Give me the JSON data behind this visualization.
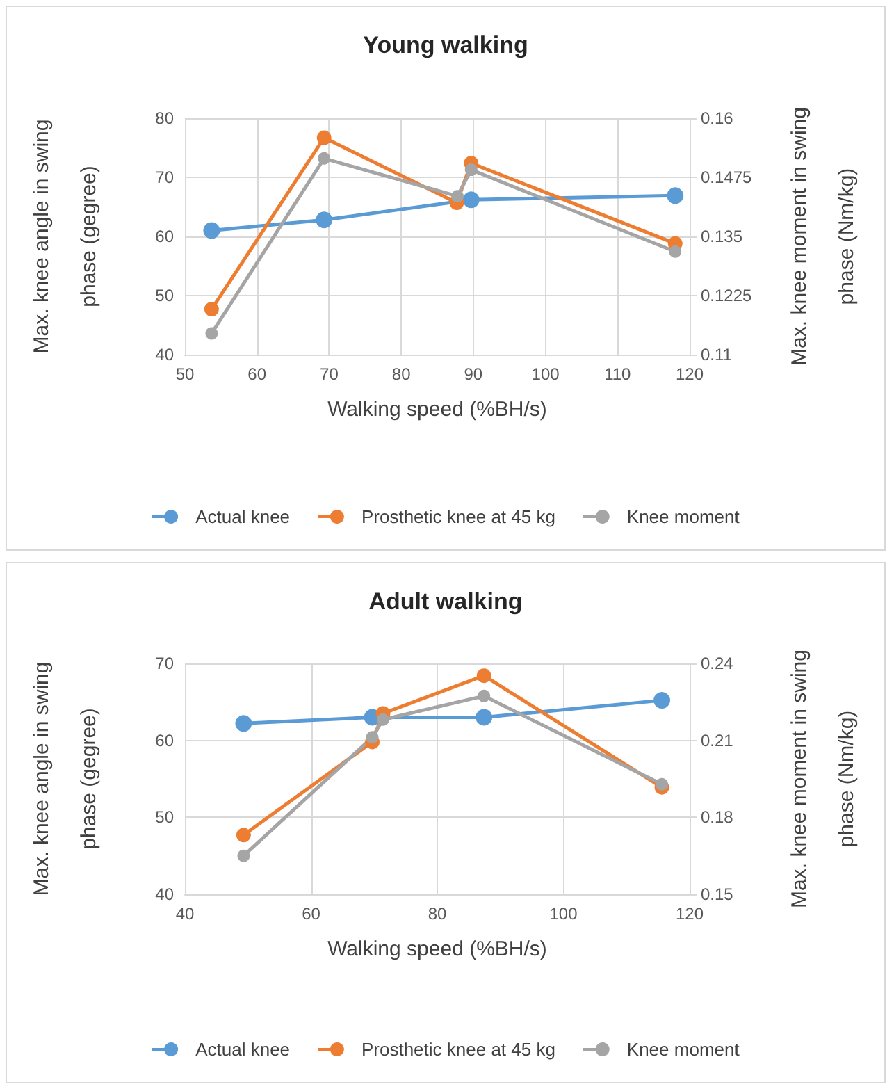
{
  "chart_data": [
    {
      "type": "line",
      "title": "Young walking",
      "xlabel": "Walking speed (%BH/s)",
      "ylabel": "Max. knee angle in swing phase (gegree)",
      "y2label": "Max. knee moment in swing phase (Nm/kg)",
      "xlim": [
        50,
        120
      ],
      "xticks": [
        50,
        60,
        70,
        80,
        90,
        100,
        110,
        120
      ],
      "ylim": [
        40,
        80
      ],
      "yticks": [
        40,
        50,
        60,
        70,
        80
      ],
      "y2lim": [
        0.11,
        0.16
      ],
      "y2ticks": [
        0.11,
        0.1225,
        0.135,
        0.1475,
        0.16
      ],
      "grid": true,
      "legend": "bottom",
      "marker": "circle",
      "series": [
        {
          "name": "Actual knee",
          "color": "#5b9bd5",
          "x": [
            53.7,
            69.3,
            89.7,
            118
          ],
          "values": [
            61.0,
            62.8,
            66.2,
            66.9
          ]
        },
        {
          "name": "Prosthetic knee at 45 kg",
          "color": "#ed7d31",
          "x": [
            53.7,
            69.3,
            87.7,
            89.7,
            118
          ],
          "values": [
            47.7,
            76.7,
            65.7,
            72.4,
            58.8
          ]
        },
        {
          "name": "Knee moment",
          "color": "#a5a5a5",
          "axis": "y2",
          "x": [
            53.7,
            69.3,
            87.8,
            89.7,
            118
          ],
          "values": [
            0.1145,
            0.1515,
            0.1435,
            0.1491,
            0.1318
          ]
        }
      ]
    },
    {
      "type": "line",
      "title": "Adult walking",
      "xlabel": "Walking speed (%BH/s)",
      "ylabel": "Max. knee angle in swing phase (gegree)",
      "y2label": "Max. knee moment in swing phase (Nm/kg)",
      "xlim": [
        40,
        120
      ],
      "xticks": [
        40,
        60,
        80,
        100,
        120
      ],
      "ylim": [
        40,
        70
      ],
      "yticks": [
        40,
        50,
        60,
        70
      ],
      "y2lim": [
        0.15,
        0.24
      ],
      "y2ticks": [
        0.15,
        0.18,
        0.21,
        0.24
      ],
      "grid": true,
      "legend": "bottom",
      "marker": "circle",
      "series": [
        {
          "name": "Actual knee",
          "color": "#5b9bd5",
          "x": [
            49.3,
            69.7,
            87.4,
            115.6
          ],
          "values": [
            62.2,
            63.0,
            63.0,
            65.2
          ]
        },
        {
          "name": "Prosthetic knee at 45 kg",
          "color": "#ed7d31",
          "x": [
            49.3,
            69.7,
            71.4,
            87.4,
            115.6
          ],
          "values": [
            47.7,
            59.8,
            63.5,
            68.4,
            53.9
          ]
        },
        {
          "name": "Knee moment",
          "color": "#a5a5a5",
          "axis": "y2",
          "x": [
            49.3,
            69.7,
            71.4,
            87.4,
            115.6
          ],
          "values": [
            0.165,
            0.2112,
            0.2181,
            0.2273,
            0.1929
          ]
        }
      ]
    }
  ]
}
